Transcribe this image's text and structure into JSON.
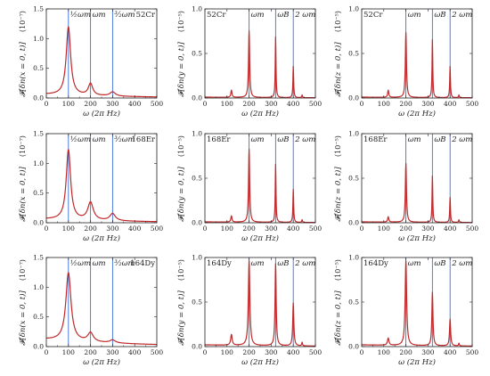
{
  "chart_data": [
    {
      "type": "line",
      "species": "52Cr",
      "ylabel": "𝓕[δn(x = 0, t)]",
      "exp": "(10⁻⁷)",
      "xlabel": "ω (2π Hz)",
      "xlim": [
        0,
        500
      ],
      "ylim": [
        0,
        1.5
      ],
      "xticks": [
        0,
        100,
        200,
        300,
        400,
        500
      ],
      "yticks": [
        0,
        0.5,
        1,
        1.5
      ],
      "ytick_labels": [
        "0.0",
        "0.5",
        "1.0",
        "1.5"
      ],
      "vlines": [
        {
          "x": 100,
          "label": "½ωm"
        },
        {
          "x": 200,
          "label": "ωm"
        },
        {
          "x": 300,
          "label": "³⁄₂ωm"
        }
      ],
      "peaks": [
        {
          "x": 100,
          "h": 1.15,
          "w": 12
        },
        {
          "x": 200,
          "h": 0.2,
          "w": 12
        },
        {
          "x": 300,
          "h": 0.07,
          "w": 15
        }
      ],
      "baseline": 0.06,
      "species_pos": "top-right"
    },
    {
      "type": "line",
      "species": "52Cr",
      "ylabel": "𝓕[δn(y = 0, t)]",
      "exp": "(10⁻⁵)",
      "xlabel": "ω (2π Hz)",
      "xlim": [
        0,
        500
      ],
      "ylim": [
        0,
        1.0
      ],
      "xticks": [
        0,
        100,
        200,
        300,
        400,
        500
      ],
      "yticks": [
        0,
        0.5,
        1
      ],
      "ytick_labels": [
        "0.0",
        "0.5",
        "1.0"
      ],
      "vlines": [
        {
          "x": 200,
          "label": "ωm"
        },
        {
          "x": 320,
          "label": "ωB"
        },
        {
          "x": 400,
          "label": "2 ωm"
        }
      ],
      "peaks": [
        {
          "x": 120,
          "h": 0.08,
          "w": 3
        },
        {
          "x": 200,
          "h": 0.75,
          "w": 3
        },
        {
          "x": 320,
          "h": 0.68,
          "w": 2
        },
        {
          "x": 400,
          "h": 0.35,
          "w": 2
        },
        {
          "x": 440,
          "h": 0.03,
          "w": 2
        }
      ],
      "baseline": 0.01,
      "species_pos": "top-left"
    },
    {
      "type": "line",
      "species": "52Cr",
      "ylabel": "𝓕[δn(z = 0, t)]",
      "exp": "(10⁻⁵)",
      "xlabel": "ω (2π Hz)",
      "xlim": [
        0,
        500
      ],
      "ylim": [
        0,
        1.0
      ],
      "xticks": [
        0,
        100,
        200,
        300,
        400,
        500
      ],
      "yticks": [
        0,
        0.5,
        1
      ],
      "ytick_labels": [
        "0.0",
        "0.5",
        "1.0"
      ],
      "vlines": [
        {
          "x": 200,
          "label": "ωm"
        },
        {
          "x": 320,
          "label": "ωB"
        },
        {
          "x": 400,
          "label": "2 ωm"
        }
      ],
      "peaks": [
        {
          "x": 120,
          "h": 0.08,
          "w": 3
        },
        {
          "x": 200,
          "h": 0.73,
          "w": 3
        },
        {
          "x": 320,
          "h": 0.65,
          "w": 2
        },
        {
          "x": 400,
          "h": 0.35,
          "w": 2
        },
        {
          "x": 440,
          "h": 0.03,
          "w": 2
        }
      ],
      "baseline": 0.01,
      "species_pos": "top-left"
    },
    {
      "type": "line",
      "species": "168Er",
      "ylabel": "𝓕[δn(x = 0, t)]",
      "exp": "(10⁻⁷)",
      "xlabel": "ω (2π Hz)",
      "xlim": [
        0,
        500
      ],
      "ylim": [
        0,
        1.5
      ],
      "xticks": [
        0,
        100,
        200,
        300,
        400,
        500
      ],
      "yticks": [
        0,
        0.5,
        1,
        1.5
      ],
      "ytick_labels": [
        "0.0",
        "0.5",
        "1.0",
        "1.5"
      ],
      "vlines": [
        {
          "x": 100,
          "label": "½ωm"
        },
        {
          "x": 200,
          "label": "ωm"
        },
        {
          "x": 300,
          "label": "³⁄₂ωm"
        }
      ],
      "peaks": [
        {
          "x": 100,
          "h": 1.18,
          "w": 12
        },
        {
          "x": 200,
          "h": 0.3,
          "w": 15
        },
        {
          "x": 300,
          "h": 0.12,
          "w": 15
        }
      ],
      "baseline": 0.06,
      "species_pos": "top-right"
    },
    {
      "type": "line",
      "species": "168Er",
      "ylabel": "𝓕[δn(y = 0, t)]",
      "exp": "(10⁻⁵)",
      "xlabel": "ω (2π Hz)",
      "xlim": [
        0,
        500
      ],
      "ylim": [
        0,
        1.0
      ],
      "xticks": [
        0,
        100,
        200,
        300,
        400,
        500
      ],
      "yticks": [
        0,
        0.5,
        1
      ],
      "ytick_labels": [
        "0.0",
        "0.5",
        "1.0"
      ],
      "vlines": [
        {
          "x": 200,
          "label": "ωm"
        },
        {
          "x": 320,
          "label": "ωB"
        },
        {
          "x": 400,
          "label": "2 ωm"
        }
      ],
      "peaks": [
        {
          "x": 120,
          "h": 0.07,
          "w": 3
        },
        {
          "x": 200,
          "h": 0.82,
          "w": 3
        },
        {
          "x": 320,
          "h": 0.65,
          "w": 2
        },
        {
          "x": 400,
          "h": 0.37,
          "w": 2
        },
        {
          "x": 440,
          "h": 0.03,
          "w": 2
        }
      ],
      "baseline": 0.01,
      "species_pos": "top-left"
    },
    {
      "type": "line",
      "species": "168Er",
      "ylabel": "𝓕[δn(z = 0, t)]",
      "exp": "(10⁻⁵)",
      "xlabel": "ω (2π Hz)",
      "xlim": [
        0,
        500
      ],
      "ylim": [
        0,
        1.0
      ],
      "xticks": [
        0,
        100,
        200,
        300,
        400,
        500
      ],
      "yticks": [
        0,
        0.5,
        1
      ],
      "ytick_labels": [
        "0.0",
        "0.5",
        "1.0"
      ],
      "vlines": [
        {
          "x": 200,
          "label": "ωm"
        },
        {
          "x": 320,
          "label": "ωB"
        },
        {
          "x": 400,
          "label": "2 ωm"
        }
      ],
      "peaks": [
        {
          "x": 120,
          "h": 0.06,
          "w": 3
        },
        {
          "x": 200,
          "h": 0.66,
          "w": 3
        },
        {
          "x": 320,
          "h": 0.52,
          "w": 2
        },
        {
          "x": 400,
          "h": 0.28,
          "w": 2
        },
        {
          "x": 440,
          "h": 0.03,
          "w": 2
        }
      ],
      "baseline": 0.01,
      "species_pos": "top-left"
    },
    {
      "type": "line",
      "species": "164Dy",
      "ylabel": "𝓕[δn(x = 0, t)]",
      "exp": "(10⁻⁷)",
      "xlabel": "ω (2π Hz)",
      "xlim": [
        0,
        500
      ],
      "ylim": [
        0,
        1.5
      ],
      "xticks": [
        0,
        100,
        200,
        300,
        400,
        500
      ],
      "yticks": [
        0,
        0.5,
        1,
        1.5
      ],
      "ytick_labels": [
        "0.0",
        "0.5",
        "1.0",
        "1.5"
      ],
      "vlines": [
        {
          "x": 100,
          "label": "½ωm"
        },
        {
          "x": 200,
          "label": "ωm"
        },
        {
          "x": 300,
          "label": "³⁄₂ωm"
        }
      ],
      "peaks": [
        {
          "x": 100,
          "h": 1.15,
          "w": 14
        },
        {
          "x": 200,
          "h": 0.15,
          "w": 15
        },
        {
          "x": 300,
          "h": 0.05,
          "w": 15
        }
      ],
      "baseline": 0.12,
      "species_pos": "top-right"
    },
    {
      "type": "line",
      "species": "164Dy",
      "ylabel": "𝓕[δn(y = 0, t)]",
      "exp": "(10⁻⁵)",
      "xlabel": "ω (2π Hz)",
      "xlim": [
        0,
        500
      ],
      "ylim": [
        0,
        1.0
      ],
      "xticks": [
        0,
        100,
        200,
        300,
        400,
        500
      ],
      "yticks": [
        0,
        0.5,
        1
      ],
      "ytick_labels": [
        "0.0",
        "0.5",
        "1.0"
      ],
      "vlines": [
        {
          "x": 200,
          "label": "ωm"
        },
        {
          "x": 320,
          "label": "ωB"
        },
        {
          "x": 400,
          "label": "2 ωm"
        }
      ],
      "peaks": [
        {
          "x": 120,
          "h": 0.12,
          "w": 4
        },
        {
          "x": 200,
          "h": 0.95,
          "w": 4
        },
        {
          "x": 320,
          "h": 0.92,
          "w": 3
        },
        {
          "x": 400,
          "h": 0.48,
          "w": 3
        },
        {
          "x": 440,
          "h": 0.04,
          "w": 2
        }
      ],
      "baseline": 0.02,
      "species_pos": "top-left"
    },
    {
      "type": "line",
      "species": "164Dy",
      "ylabel": "𝓕[δn(z = 0, t)]",
      "exp": "(10⁻⁵)",
      "xlabel": "ω (2π Hz)",
      "xlim": [
        0,
        500
      ],
      "ylim": [
        0,
        1.0
      ],
      "xticks": [
        0,
        100,
        200,
        300,
        400,
        500
      ],
      "yticks": [
        0,
        0.5,
        1
      ],
      "ytick_labels": [
        "0.0",
        "0.5",
        "1.0"
      ],
      "vlines": [
        {
          "x": 200,
          "label": "ωm"
        },
        {
          "x": 320,
          "label": "ωB"
        },
        {
          "x": 400,
          "label": "2 ωm"
        }
      ],
      "peaks": [
        {
          "x": 120,
          "h": 0.08,
          "w": 4
        },
        {
          "x": 200,
          "h": 0.95,
          "w": 4
        },
        {
          "x": 320,
          "h": 0.6,
          "w": 3
        },
        {
          "x": 400,
          "h": 0.3,
          "w": 3
        },
        {
          "x": 440,
          "h": 0.03,
          "w": 2
        }
      ],
      "baseline": 0.02,
      "species_pos": "top-left"
    }
  ],
  "colors": {
    "curve": "#c0282a",
    "vline": "#3a6fd8",
    "axis": "#222222"
  }
}
